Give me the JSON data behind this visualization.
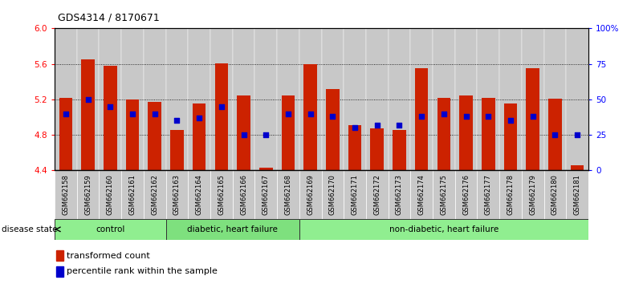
{
  "title": "GDS4314 / 8170671",
  "samples": [
    "GSM662158",
    "GSM662159",
    "GSM662160",
    "GSM662161",
    "GSM662162",
    "GSM662163",
    "GSM662164",
    "GSM662165",
    "GSM662166",
    "GSM662167",
    "GSM662168",
    "GSM662169",
    "GSM662170",
    "GSM662171",
    "GSM662172",
    "GSM662173",
    "GSM662174",
    "GSM662175",
    "GSM662176",
    "GSM662177",
    "GSM662178",
    "GSM662179",
    "GSM662180",
    "GSM662181"
  ],
  "bar_heights": [
    5.22,
    5.65,
    5.58,
    5.2,
    5.17,
    4.86,
    5.15,
    5.61,
    5.24,
    4.43,
    5.24,
    5.6,
    5.32,
    4.91,
    4.87,
    4.86,
    5.55,
    5.22,
    5.24,
    5.22,
    5.15,
    5.55,
    5.21,
    4.46
  ],
  "blue_dot_pct": [
    40,
    50,
    45,
    40,
    40,
    35,
    37,
    45,
    25,
    25,
    40,
    40,
    38,
    30,
    32,
    32,
    38,
    40,
    38,
    38,
    35,
    38,
    25,
    25
  ],
  "groups": [
    {
      "label": "control",
      "start": 0,
      "end": 5,
      "color": "#90EE90"
    },
    {
      "label": "diabetic, heart failure",
      "start": 5,
      "end": 11,
      "color": "#7EE07E"
    },
    {
      "label": "non-diabetic, heart failure",
      "start": 11,
      "end": 24,
      "color": "#90EE90"
    }
  ],
  "ylim_left": [
    4.4,
    6.0
  ],
  "yticks_left": [
    4.4,
    4.8,
    5.2,
    5.6,
    6.0
  ],
  "ylim_right": [
    0,
    100
  ],
  "yticks_right": [
    0,
    25,
    50,
    75,
    100
  ],
  "yticks_right_labels": [
    "0",
    "25",
    "50",
    "75",
    "100%"
  ],
  "bar_color": "#CC2200",
  "blue_color": "#0000CC",
  "col_bg_color": "#C8C8C8",
  "bar_width": 0.6
}
